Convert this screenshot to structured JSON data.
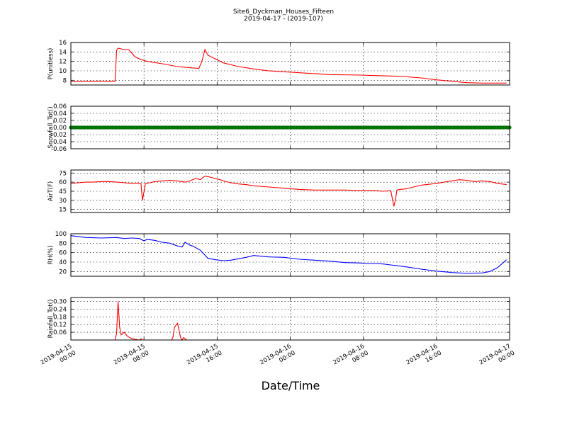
{
  "figure": {
    "title_line1": "Site6_Dyckman_Houses_Fifteen",
    "title_line2": "2019-04-17 - (2019-107)",
    "xlabel": "Date/Time"
  },
  "chart_data": [
    {
      "type": "line",
      "ylabel": "P(unitless)",
      "ylim": [
        7,
        16
      ],
      "yticks": [
        8,
        10,
        12,
        14,
        16
      ],
      "grid": true,
      "color": "#ff0000",
      "series": [
        {
          "x": [
            0,
            15,
            29,
            30,
            31,
            35,
            38,
            42,
            45,
            50,
            60,
            70,
            84,
            86,
            88,
            90,
            95,
            100,
            110,
            120,
            130,
            140,
            150,
            170,
            190,
            200,
            210,
            220,
            222,
            230,
            240,
            250,
            260,
            270,
            280,
            286
          ],
          "y": [
            7.7,
            7.8,
            7.8,
            14.3,
            14.8,
            14.5,
            14.5,
            13.0,
            12.5,
            12.0,
            11.5,
            10.9,
            10.5,
            12.0,
            14.5,
            13.3,
            12.5,
            11.7,
            10.9,
            10.4,
            10.0,
            9.8,
            9.6,
            9.2,
            9.1,
            9.0,
            8.9,
            8.8,
            8.7,
            8.5,
            8.1,
            7.8,
            7.5,
            7.4,
            7.4,
            7.4
          ]
        }
      ]
    },
    {
      "type": "line",
      "ylabel": "Snowfall_Tot()",
      "ylim": [
        -0.06,
        0.06
      ],
      "yticks": [
        -0.06,
        -0.04,
        -0.02,
        0.0,
        0.02,
        0.04,
        0.06
      ],
      "grid": true,
      "color": "#008000",
      "markers": true,
      "series": [
        {
          "x": [
            0,
            286
          ],
          "y": [
            0.0,
            0.0
          ]
        }
      ]
    },
    {
      "type": "line",
      "ylabel": "AirT(F)",
      "ylim": [
        10,
        80
      ],
      "yticks": [
        15,
        30,
        45,
        60,
        75
      ],
      "grid": true,
      "color": "#ff0000",
      "series": [
        {
          "x": [
            0,
            5,
            10,
            15,
            20,
            25,
            30,
            35,
            40,
            45,
            46,
            47,
            49,
            52,
            55,
            60,
            65,
            70,
            75,
            78,
            82,
            85,
            88,
            90,
            95,
            98,
            100,
            105,
            110,
            115,
            120,
            130,
            140,
            150,
            160,
            170,
            180,
            190,
            195,
            200,
            205,
            210,
            212,
            213,
            214,
            216,
            220,
            225,
            230,
            240,
            250,
            255,
            260,
            265,
            270,
            275,
            280,
            286
          ],
          "y": [
            58,
            59,
            60,
            60,
            61,
            61,
            60,
            59,
            58,
            58,
            58,
            30,
            58,
            59,
            61,
            62,
            63,
            62,
            60,
            62,
            66,
            64,
            70,
            69,
            66,
            64,
            62,
            59,
            57,
            56,
            54,
            52,
            50,
            48,
            47,
            47,
            47,
            46,
            46,
            46,
            45,
            46,
            20,
            30,
            47,
            48,
            49,
            52,
            55,
            58,
            62,
            64,
            63,
            61,
            62,
            61,
            58,
            56
          ]
        }
      ]
    },
    {
      "type": "line",
      "ylabel": "RH(%)",
      "ylim": [
        10,
        100
      ],
      "yticks": [
        20,
        40,
        60,
        80,
        100
      ],
      "grid": true,
      "color": "#0000ff",
      "series": [
        {
          "x": [
            0,
            10,
            20,
            30,
            35,
            40,
            45,
            48,
            50,
            55,
            60,
            65,
            70,
            73,
            75,
            78,
            80,
            85,
            90,
            95,
            100,
            105,
            110,
            115,
            120,
            130,
            140,
            150,
            160,
            170,
            180,
            190,
            195,
            200,
            205,
            210,
            220,
            230,
            240,
            250,
            255,
            260,
            270,
            275,
            280,
            286
          ],
          "y": [
            96,
            92,
            91,
            92,
            90,
            91,
            90,
            85,
            88,
            86,
            82,
            80,
            74,
            72,
            82,
            76,
            74,
            65,
            48,
            45,
            43,
            44,
            47,
            50,
            54,
            51,
            50,
            46,
            44,
            42,
            39,
            38,
            37,
            37,
            36,
            34,
            30,
            25,
            21,
            18,
            17,
            16,
            17,
            20,
            28,
            45
          ]
        }
      ]
    },
    {
      "type": "line",
      "ylabel": "Rainfall_Tot()",
      "ylim": [
        0,
        0.33
      ],
      "yticks": [
        0.06,
        0.12,
        0.18,
        0.24,
        0.3
      ],
      "grid": true,
      "color": "#ff0000",
      "series": [
        {
          "x": [
            0,
            29,
            30,
            31,
            32,
            33,
            34,
            35,
            37,
            40,
            45,
            46,
            47,
            50,
            66,
            67,
            68,
            70,
            72,
            73,
            74,
            75,
            76,
            80,
            286
          ],
          "y": [
            0,
            0,
            0.05,
            0.3,
            0.1,
            0.04,
            0.05,
            0.06,
            0.03,
            0.01,
            0,
            0.01,
            0,
            0,
            0,
            0.02,
            0.1,
            0.13,
            0.02,
            0,
            0.02,
            0.01,
            0,
            0,
            0
          ]
        }
      ]
    }
  ],
  "x_axis": {
    "unit": "samples at 10-minute interval from 2019-04-15 00:00",
    "range": [
      0,
      288
    ],
    "ticks": [
      {
        "x": 0,
        "label": "2019-04-15\n00:00"
      },
      {
        "x": 48,
        "label": "2019-04-15\n08:00"
      },
      {
        "x": 96,
        "label": "2019-04-15\n16:00"
      },
      {
        "x": 144,
        "label": "2019-04-16\n00:00"
      },
      {
        "x": 192,
        "label": "2019-04-16\n08:00"
      },
      {
        "x": 240,
        "label": "2019-04-16\n16:00"
      },
      {
        "x": 288,
        "label": "2019-04-17\n00:00"
      }
    ]
  }
}
